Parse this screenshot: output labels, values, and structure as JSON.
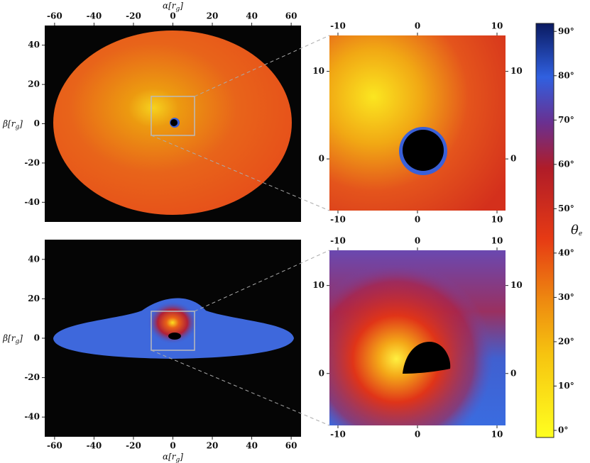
{
  "panels": [
    {
      "xlim": [
        -65,
        65
      ],
      "ylim": [
        -50,
        50
      ],
      "xticks": [
        -60,
        -40,
        -20,
        0,
        20,
        40,
        60
      ],
      "yticks": [
        -40,
        -20,
        0,
        20,
        40
      ],
      "xlabel": {
        "main": "α[r",
        "sub": "g",
        "end": "]"
      },
      "ylabel": {
        "main": "β[r",
        "sub": "g",
        "end": "]"
      }
    },
    {
      "xlim": [
        -65,
        65
      ],
      "ylim": [
        -50,
        50
      ],
      "xticks": [
        -60,
        -40,
        -20,
        0,
        20,
        40,
        60
      ],
      "yticks": [
        -40,
        -20,
        0,
        20,
        40
      ],
      "xlabel": {
        "main": "α[r",
        "sub": "g",
        "end": "]"
      },
      "ylabel": {
        "main": "β[r",
        "sub": "g",
        "end": "]"
      }
    },
    {
      "xlim": [
        -11.07,
        11.07
      ],
      "ylim": [
        -5.9,
        14.1
      ],
      "xticks": [
        -10,
        0,
        10
      ],
      "yticks": [
        0,
        10
      ]
    },
    {
      "xlim": [
        -11.07,
        11.07
      ],
      "ylim": [
        -5.9,
        14
      ],
      "xticks": [
        -10,
        0,
        10
      ],
      "yticks": [
        0,
        10
      ]
    }
  ],
  "colorbar": {
    "lim": [
      -1.6,
      91.8
    ],
    "ticks": [
      {
        "value": 0,
        "label": "0°"
      },
      {
        "value": 10,
        "label": "10°"
      },
      {
        "value": 20,
        "label": "20°"
      },
      {
        "value": 30,
        "label": "30°"
      },
      {
        "value": 40,
        "label": "40°"
      },
      {
        "value": 50,
        "label": "50°"
      },
      {
        "value": 60,
        "label": "60°"
      },
      {
        "value": 70,
        "label": "70°"
      },
      {
        "value": 80,
        "label": "80°"
      },
      {
        "value": 90,
        "label": "90°"
      }
    ],
    "label": {
      "main": "θ",
      "sub": "e"
    }
  }
}
